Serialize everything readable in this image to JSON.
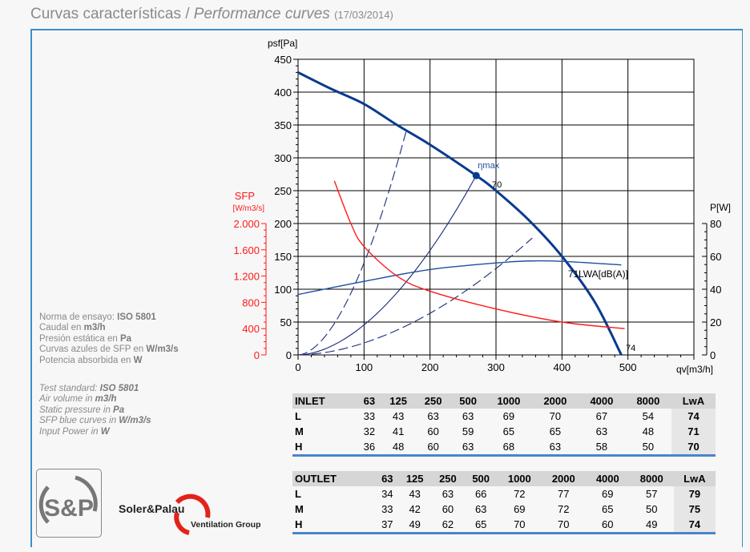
{
  "header": {
    "title_es": "Curvas características /",
    "title_en": "Performance curves",
    "date": "(17/03/2014)"
  },
  "notes": {
    "es": [
      [
        "Norma de ensayo: ",
        "ISO 5801"
      ],
      [
        "Caudal en ",
        "m3/h"
      ],
      [
        "Presión estática en ",
        "Pa"
      ],
      [
        "Curvas azules de SFP en ",
        "W/m3/s"
      ],
      [
        "Potencia absorbida en ",
        "W"
      ]
    ],
    "en": [
      [
        "Test standard: ",
        "ISO 5801"
      ],
      [
        "Air volume in ",
        "m3/h"
      ],
      [
        "Static pressure in ",
        "Pa"
      ],
      [
        "SFP blue curves in ",
        "W/m3/s"
      ],
      [
        "Input Power in ",
        "W"
      ]
    ]
  },
  "chart_data": {
    "type": "line",
    "xlabel": "qv[m3/h]",
    "ylabel": "psf[Pa]",
    "y2label": "P[W]",
    "y3label": "SFP",
    "y3unit": "[W/m3/s]",
    "xlim": [
      0,
      600
    ],
    "ylim": [
      0,
      450
    ],
    "y2lim": [
      0,
      80
    ],
    "y3lim": [
      0,
      2000
    ],
    "xticks": [
      0,
      100,
      200,
      300,
      400,
      500
    ],
    "yticks": [
      0,
      50,
      100,
      150,
      200,
      250,
      300,
      350,
      400,
      450
    ],
    "y2ticks": [
      0,
      20,
      40,
      60,
      80
    ],
    "y3ticks": [
      "0",
      "400",
      "800",
      "1.200",
      "1.600",
      "2.000"
    ],
    "grid": true,
    "colors": {
      "fan": "#0b3a8f",
      "sfp": "#ff1a1a",
      "power": "#1d4fa0",
      "system": "#1a2a7a"
    },
    "series": [
      {
        "key": "fan",
        "axis": "psf",
        "points": [
          [
            0,
            430
          ],
          [
            50,
            405
          ],
          [
            100,
            382
          ],
          [
            150,
            350
          ],
          [
            200,
            320
          ],
          [
            270,
            273
          ],
          [
            300,
            250
          ],
          [
            350,
            205
          ],
          [
            400,
            150
          ],
          [
            450,
            80
          ],
          [
            490,
            0
          ]
        ]
      },
      {
        "key": "power",
        "axis": "P",
        "points": [
          [
            0,
            36.8
          ],
          [
            100,
            44.8
          ],
          [
            200,
            52
          ],
          [
            300,
            56
          ],
          [
            350,
            57.2
          ],
          [
            400,
            57
          ],
          [
            490,
            54.8
          ]
        ]
      },
      {
        "key": "sfp",
        "axis": "SFP",
        "points": [
          [
            55,
            2650
          ],
          [
            80,
            2000
          ],
          [
            100,
            1650
          ],
          [
            150,
            1200
          ],
          [
            200,
            970
          ],
          [
            300,
            700
          ],
          [
            400,
            500
          ],
          [
            495,
            400
          ]
        ]
      }
    ],
    "system_curves": [
      {
        "end": [
          165,
          345
        ],
        "dashed": true
      },
      {
        "end": [
          270,
          273
        ],
        "dashed": false
      },
      {
        "end": [
          355,
          178
        ],
        "dashed": true
      }
    ],
    "annotations": {
      "eta": "ηmax",
      "eta_point": [
        270,
        273
      ],
      "lw70": "70",
      "lw71": "71",
      "lwa_label": "LWA[dB(A)]",
      "lw74": "74"
    }
  },
  "inlet": {
    "head": [
      "INLET",
      "63",
      "125",
      "250",
      "500",
      "1000",
      "2000",
      "4000",
      "8000",
      "LwA"
    ],
    "rows": [
      [
        "L",
        "33",
        "43",
        "63",
        "63",
        "69",
        "70",
        "67",
        "54",
        "74"
      ],
      [
        "M",
        "32",
        "41",
        "60",
        "59",
        "65",
        "65",
        "63",
        "48",
        "71"
      ],
      [
        "H",
        "36",
        "48",
        "60",
        "63",
        "68",
        "63",
        "58",
        "50",
        "70"
      ]
    ]
  },
  "outlet": {
    "head": [
      "OUTLET",
      "63",
      "125",
      "250",
      "500",
      "1000",
      "2000",
      "4000",
      "8000",
      "LwA"
    ],
    "rows": [
      [
        "L",
        "34",
        "43",
        "63",
        "66",
        "72",
        "77",
        "69",
        "57",
        "79"
      ],
      [
        "M",
        "33",
        "42",
        "60",
        "63",
        "69",
        "72",
        "65",
        "50",
        "75"
      ],
      [
        "H",
        "37",
        "49",
        "62",
        "65",
        "70",
        "70",
        "60",
        "49",
        "74"
      ]
    ]
  },
  "logo": {
    "mark": "S&P",
    "brand": "Soler&Palau",
    "group": "Ventilation Group"
  }
}
